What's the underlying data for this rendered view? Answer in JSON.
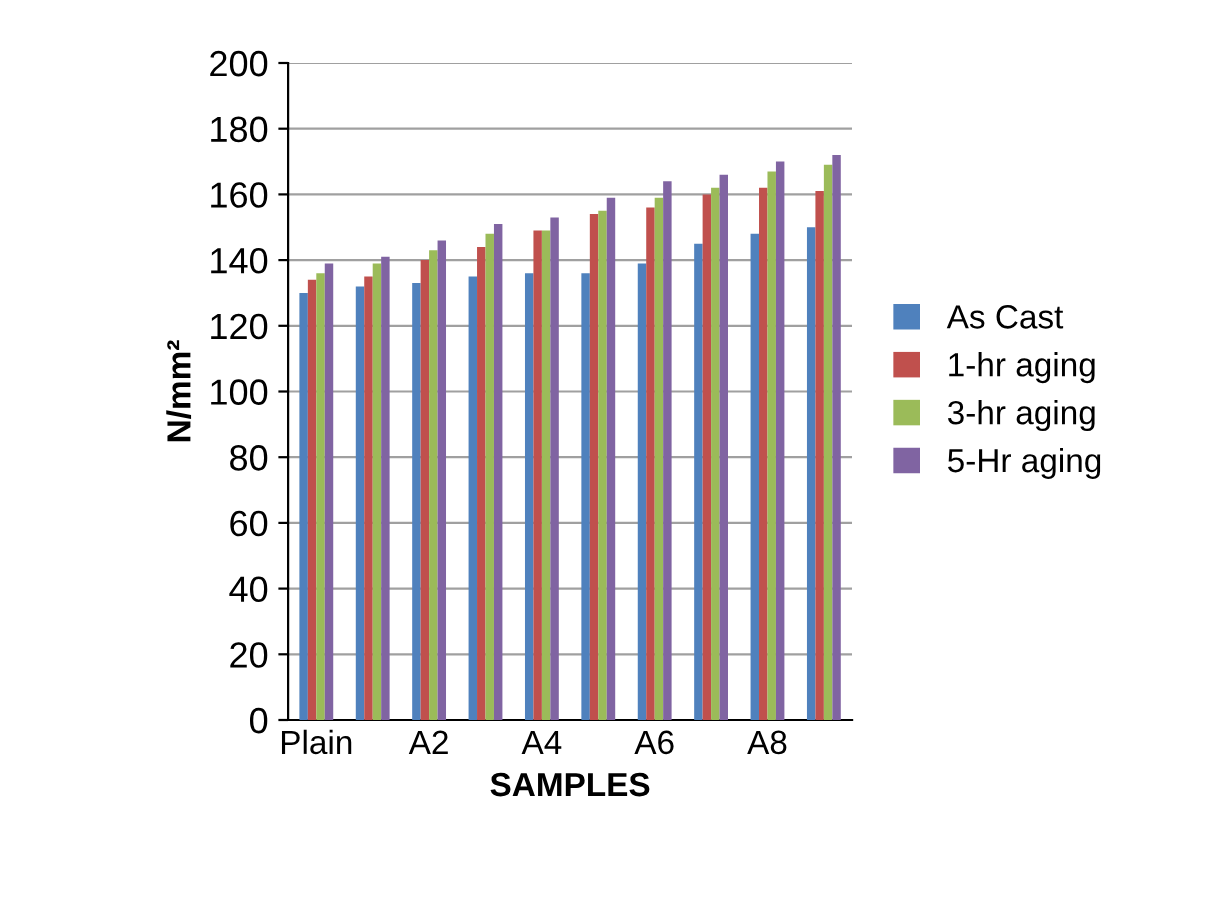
{
  "chart_data": {
    "type": "bar",
    "xlabel": "SAMPLES",
    "ylabel": "N/mm²",
    "categories": [
      "Plain",
      null,
      "A2",
      null,
      "A4",
      null,
      "A6",
      null,
      "A8",
      null
    ],
    "series": [
      {
        "name": "As Cast",
        "color": "#4f81bd",
        "values": [
          130,
          132,
          133,
          135,
          136,
          136,
          139,
          145,
          148,
          150
        ]
      },
      {
        "name": "1-hr aging",
        "color": "#c0504d",
        "values": [
          134,
          135,
          140,
          144,
          149,
          154,
          156,
          160,
          162,
          161
        ]
      },
      {
        "name": "3-hr aging",
        "color": "#9bbb59",
        "values": [
          136,
          139,
          143,
          148,
          149,
          155,
          159,
          162,
          167,
          169
        ]
      },
      {
        "name": "5-Hr aging",
        "color": "#8064a2",
        "values": [
          139,
          141,
          146,
          151,
          153,
          159,
          164,
          166,
          170,
          172
        ]
      }
    ],
    "ylim": [
      0,
      200
    ],
    "yticks": [
      0,
      20,
      40,
      60,
      80,
      100,
      120,
      140,
      160,
      180,
      200
    ],
    "grid": "y",
    "legend": "right"
  }
}
